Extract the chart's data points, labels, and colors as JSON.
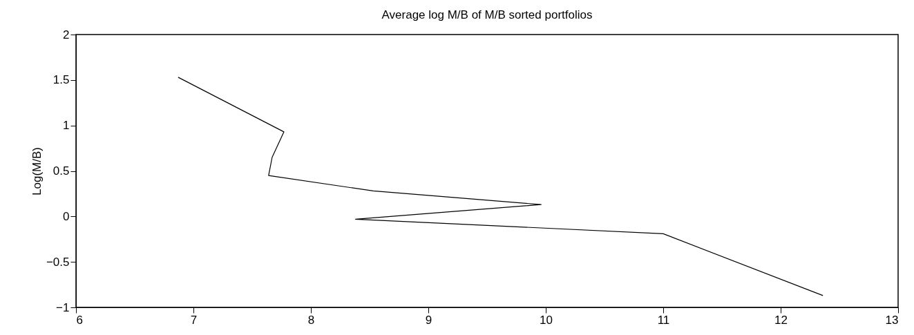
{
  "chart_data": {
    "type": "line",
    "title": "Average log M/B of M/B sorted portfolios",
    "ylabel": "Log(M/B)",
    "x": [
      6.87,
      7.77,
      7.67,
      7.64,
      8.53,
      9.96,
      8.38,
      11.0,
      12.36
    ],
    "series": [
      {
        "color": "#000000",
        "values": [
          1.53,
          0.93,
          0.65,
          0.45,
          0.28,
          0.13,
          -0.03,
          -0.19,
          -0.87
        ]
      }
    ],
    "xlim": [
      6,
      13
    ],
    "xticks": [
      6,
      7,
      8,
      9,
      10,
      11,
      12,
      13
    ],
    "ylim": [
      -1,
      2
    ],
    "yticks": [
      -1,
      -0.5,
      0,
      0.5,
      1,
      1.5,
      2
    ],
    "grid": false,
    "marker": "none",
    "line_style": "solid"
  }
}
